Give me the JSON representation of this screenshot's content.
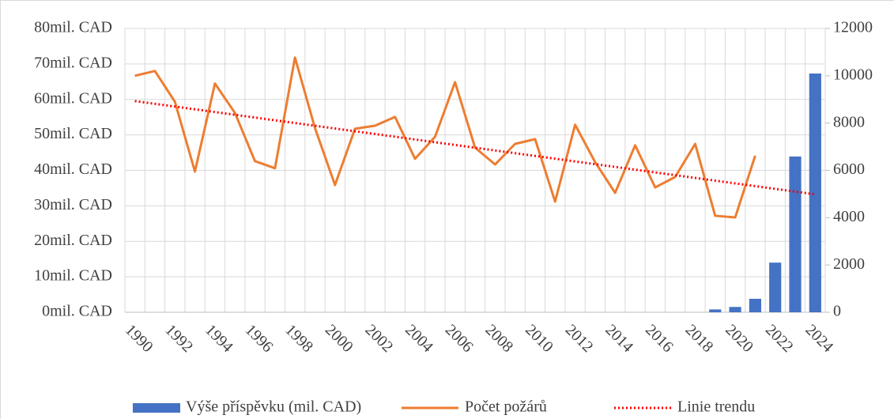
{
  "chart_data": {
    "type": "combo",
    "categories": [
      1990,
      null,
      1992,
      null,
      1994,
      null,
      1996,
      null,
      1998,
      null,
      2000,
      null,
      2002,
      null,
      2004,
      null,
      2006,
      null,
      2008,
      null,
      2010,
      null,
      2012,
      null,
      2014,
      null,
      2016,
      null,
      2018,
      null,
      2020,
      null,
      2022,
      null,
      2024
    ],
    "ylim": [
      0,
      80
    ],
    "yticks": [
      {
        "value": 0,
        "label": "0mil. CAD"
      },
      {
        "value": 10,
        "label": "10mil. CAD"
      },
      {
        "value": 20,
        "label": "20mil. CAD"
      },
      {
        "value": 30,
        "label": "30mil. CAD"
      },
      {
        "value": 40,
        "label": "40mil. CAD"
      },
      {
        "value": 50,
        "label": "50mil. CAD"
      },
      {
        "value": 60,
        "label": "60mil. CAD"
      },
      {
        "value": 70,
        "label": "70mil. CAD"
      },
      {
        "value": 80,
        "label": "80mil. CAD"
      }
    ],
    "y2lim": [
      0,
      12000
    ],
    "y2ticks": [
      0,
      2000,
      4000,
      6000,
      8000,
      10000,
      12000
    ],
    "grid": true,
    "legend": "bottom",
    "series": [
      {
        "name": "Výše příspěvku (mil. CAD)",
        "type": "bar",
        "color": "#4472c4",
        "values": [
          null,
          null,
          null,
          null,
          null,
          null,
          null,
          null,
          null,
          null,
          null,
          null,
          null,
          null,
          null,
          null,
          null,
          null,
          null,
          null,
          null,
          null,
          null,
          null,
          null,
          null,
          null,
          null,
          null,
          0.8,
          1.5,
          3.8,
          14.0,
          43.9,
          67.3
        ]
      },
      {
        "name": "Počet požárů",
        "type": "line",
        "axis": "y2",
        "color": "#ed7d31",
        "values": [
          10000,
          10200,
          8900,
          5950,
          9670,
          8430,
          6390,
          6090,
          10770,
          7790,
          5380,
          7760,
          7890,
          8260,
          6490,
          7420,
          9730,
          6960,
          6250,
          7120,
          7320,
          4680,
          7930,
          6350,
          5050,
          7060,
          5280,
          5720,
          7120,
          4080,
          4010,
          6620,
          null,
          null,
          null
        ]
      },
      {
        "name": "Linie trendu",
        "type": "line",
        "axis": "y2",
        "color": "#ff0000",
        "dotted": true,
        "values": [
          8930,
          8814,
          8698,
          8582,
          8466,
          8350,
          8234,
          8118,
          8002,
          7886,
          7770,
          7654,
          7538,
          7422,
          7306,
          7190,
          7074,
          6958,
          6842,
          6726,
          6610,
          6494,
          6378,
          6262,
          6146,
          6030,
          5914,
          5798,
          5682,
          5566,
          5450,
          5334,
          5218,
          5102,
          4986
        ]
      }
    ]
  }
}
